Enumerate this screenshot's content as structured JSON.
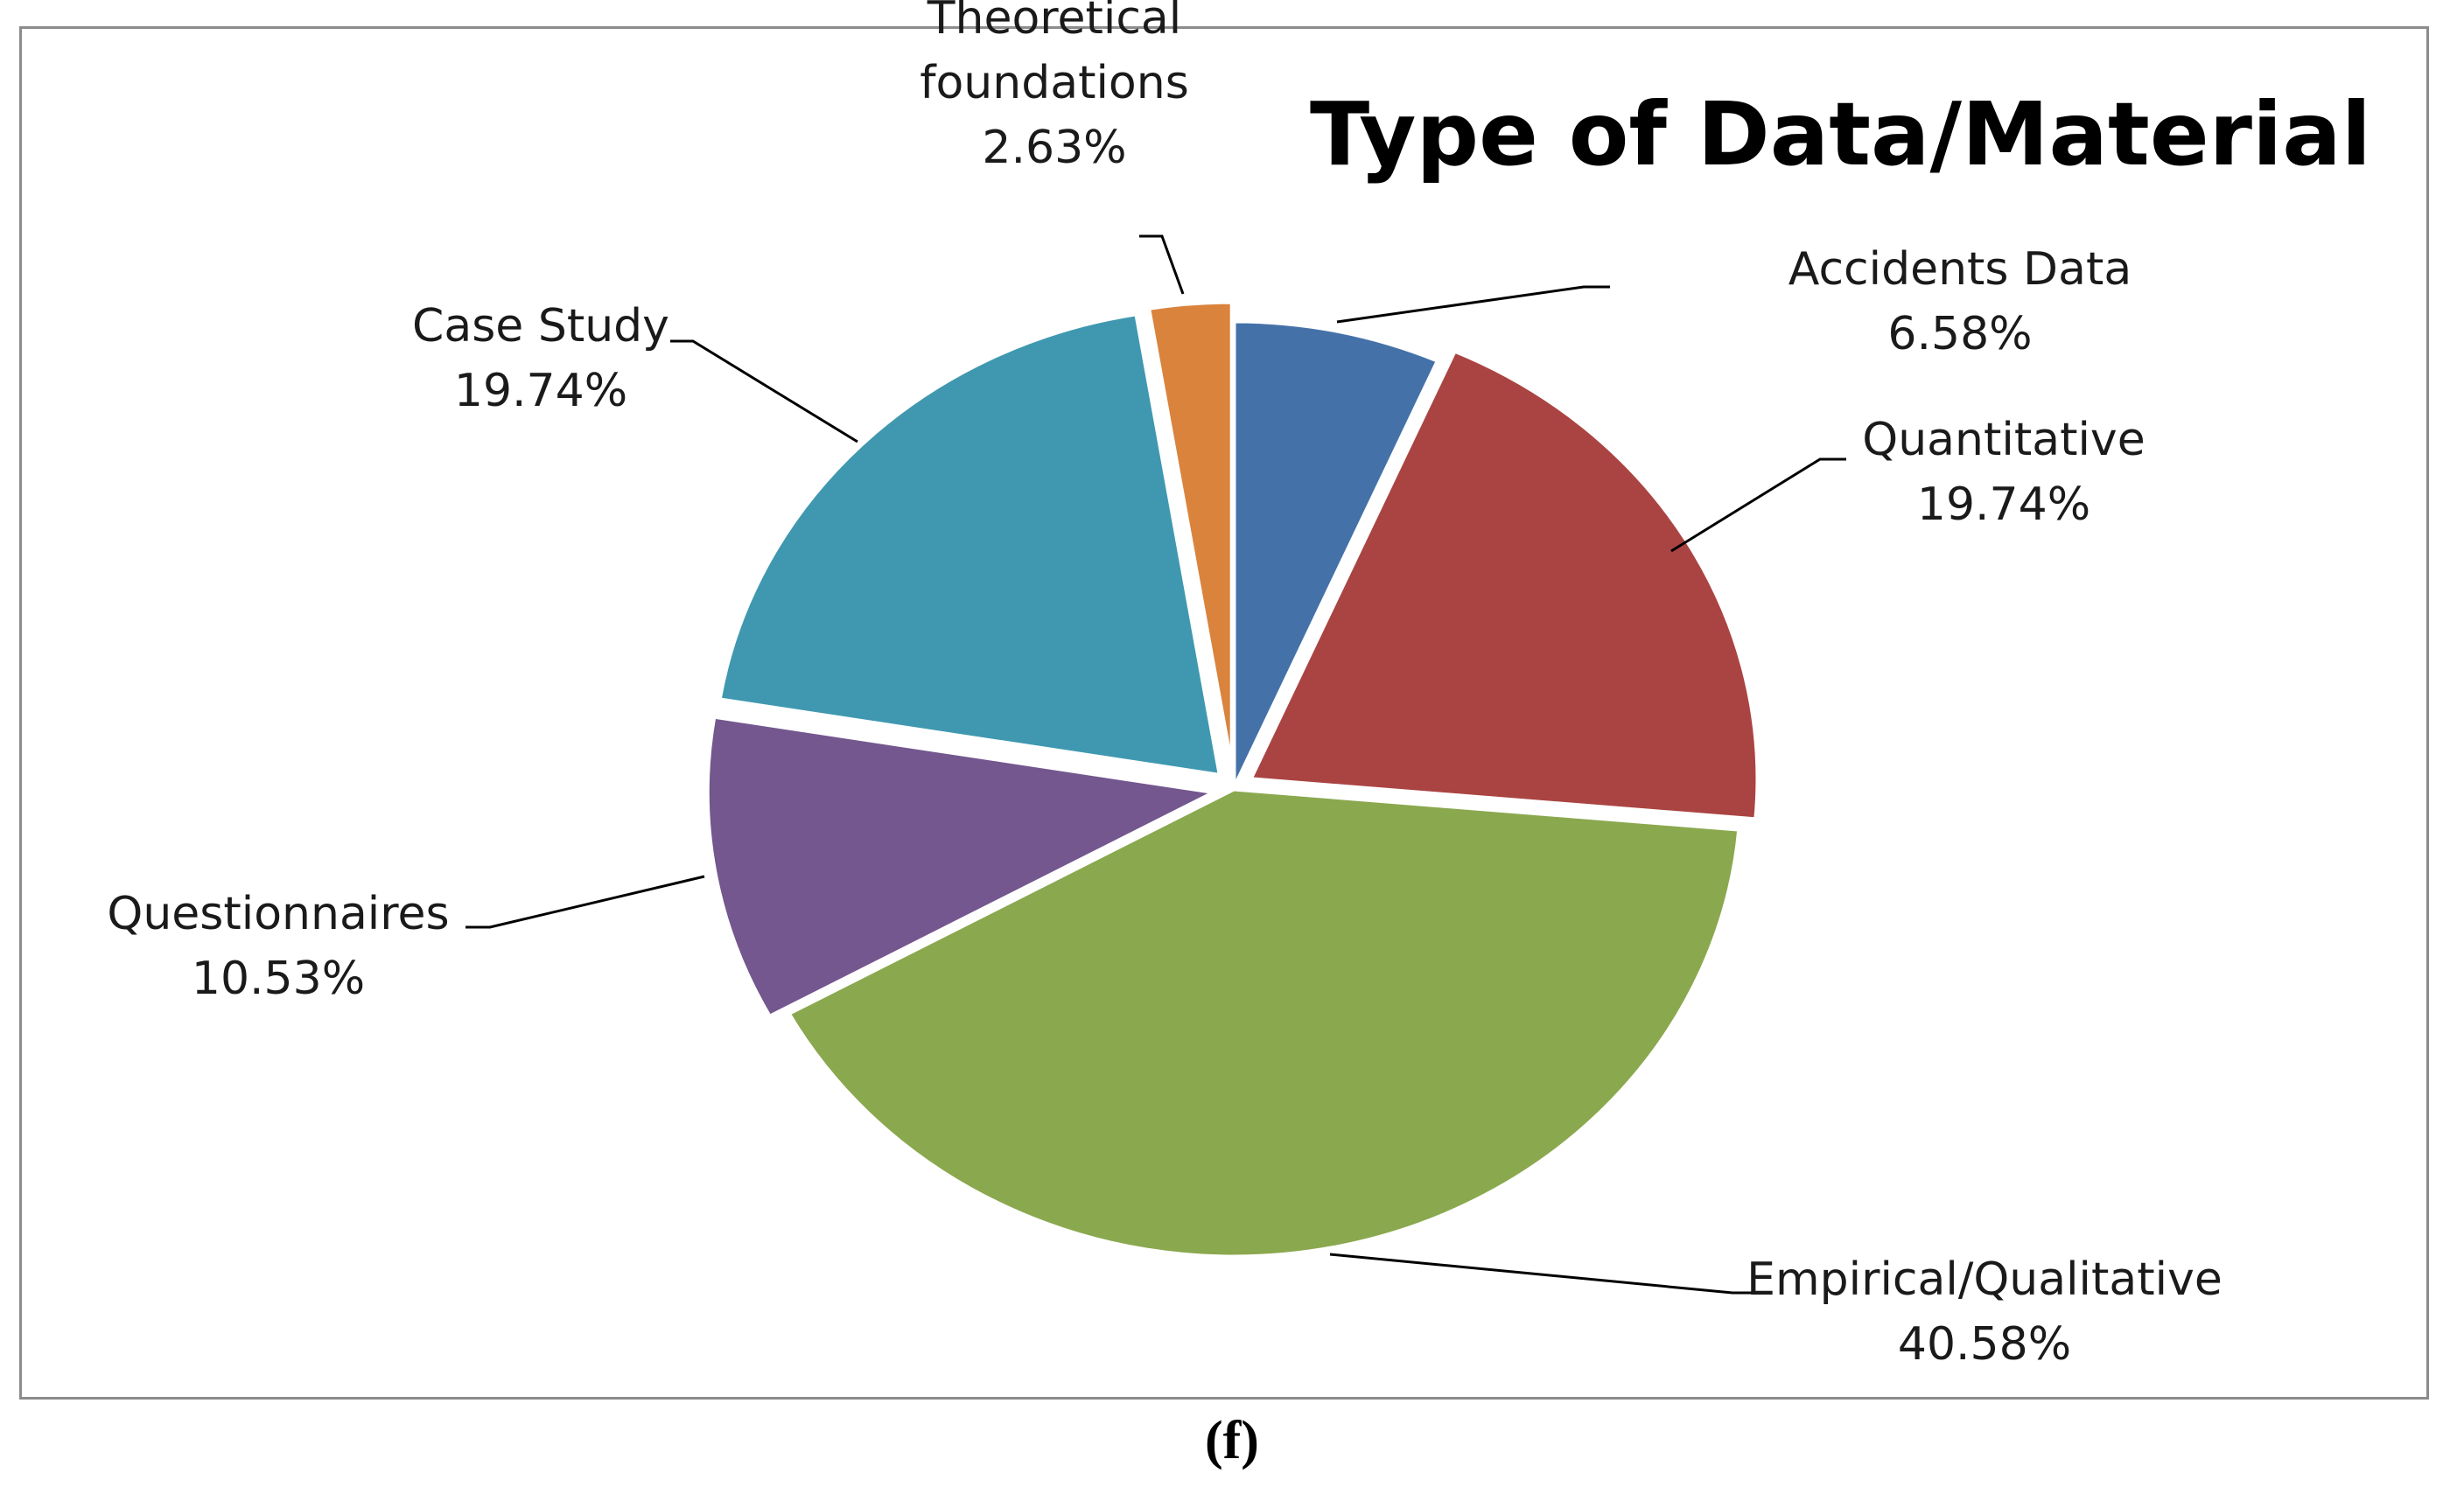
{
  "chart_data": {
    "type": "pie",
    "title": "Type of Data/Material",
    "start_angle_deg": 0,
    "direction": "clockwise",
    "slices": [
      {
        "label": "Accidents Data",
        "value": 6.58,
        "value_label": "6.58%",
        "color": "#4472A8",
        "exploded": false
      },
      {
        "label": "Quantitative",
        "value": 19.74,
        "value_label": "19.74%",
        "color": "#AA4442",
        "exploded": true
      },
      {
        "label": "Empirical/Qualitative",
        "value": 40.58,
        "value_label": "40.58%",
        "color": "#8AA84E",
        "exploded": false
      },
      {
        "label": "Questionnaires",
        "value": 10.53,
        "value_label": "10.53%",
        "color": "#73578E",
        "exploded": true
      },
      {
        "label": "Case Study",
        "value": 19.74,
        "value_label": "19.74%",
        "color": "#3F98B0",
        "exploded": true
      },
      {
        "label": "Theoretical foundations",
        "label_lines": [
          "Theoretical",
          "foundations"
        ],
        "value": 2.63,
        "value_label": "2.63%",
        "color": "#DA833D",
        "exploded": true
      }
    ]
  },
  "caption": "(f)"
}
